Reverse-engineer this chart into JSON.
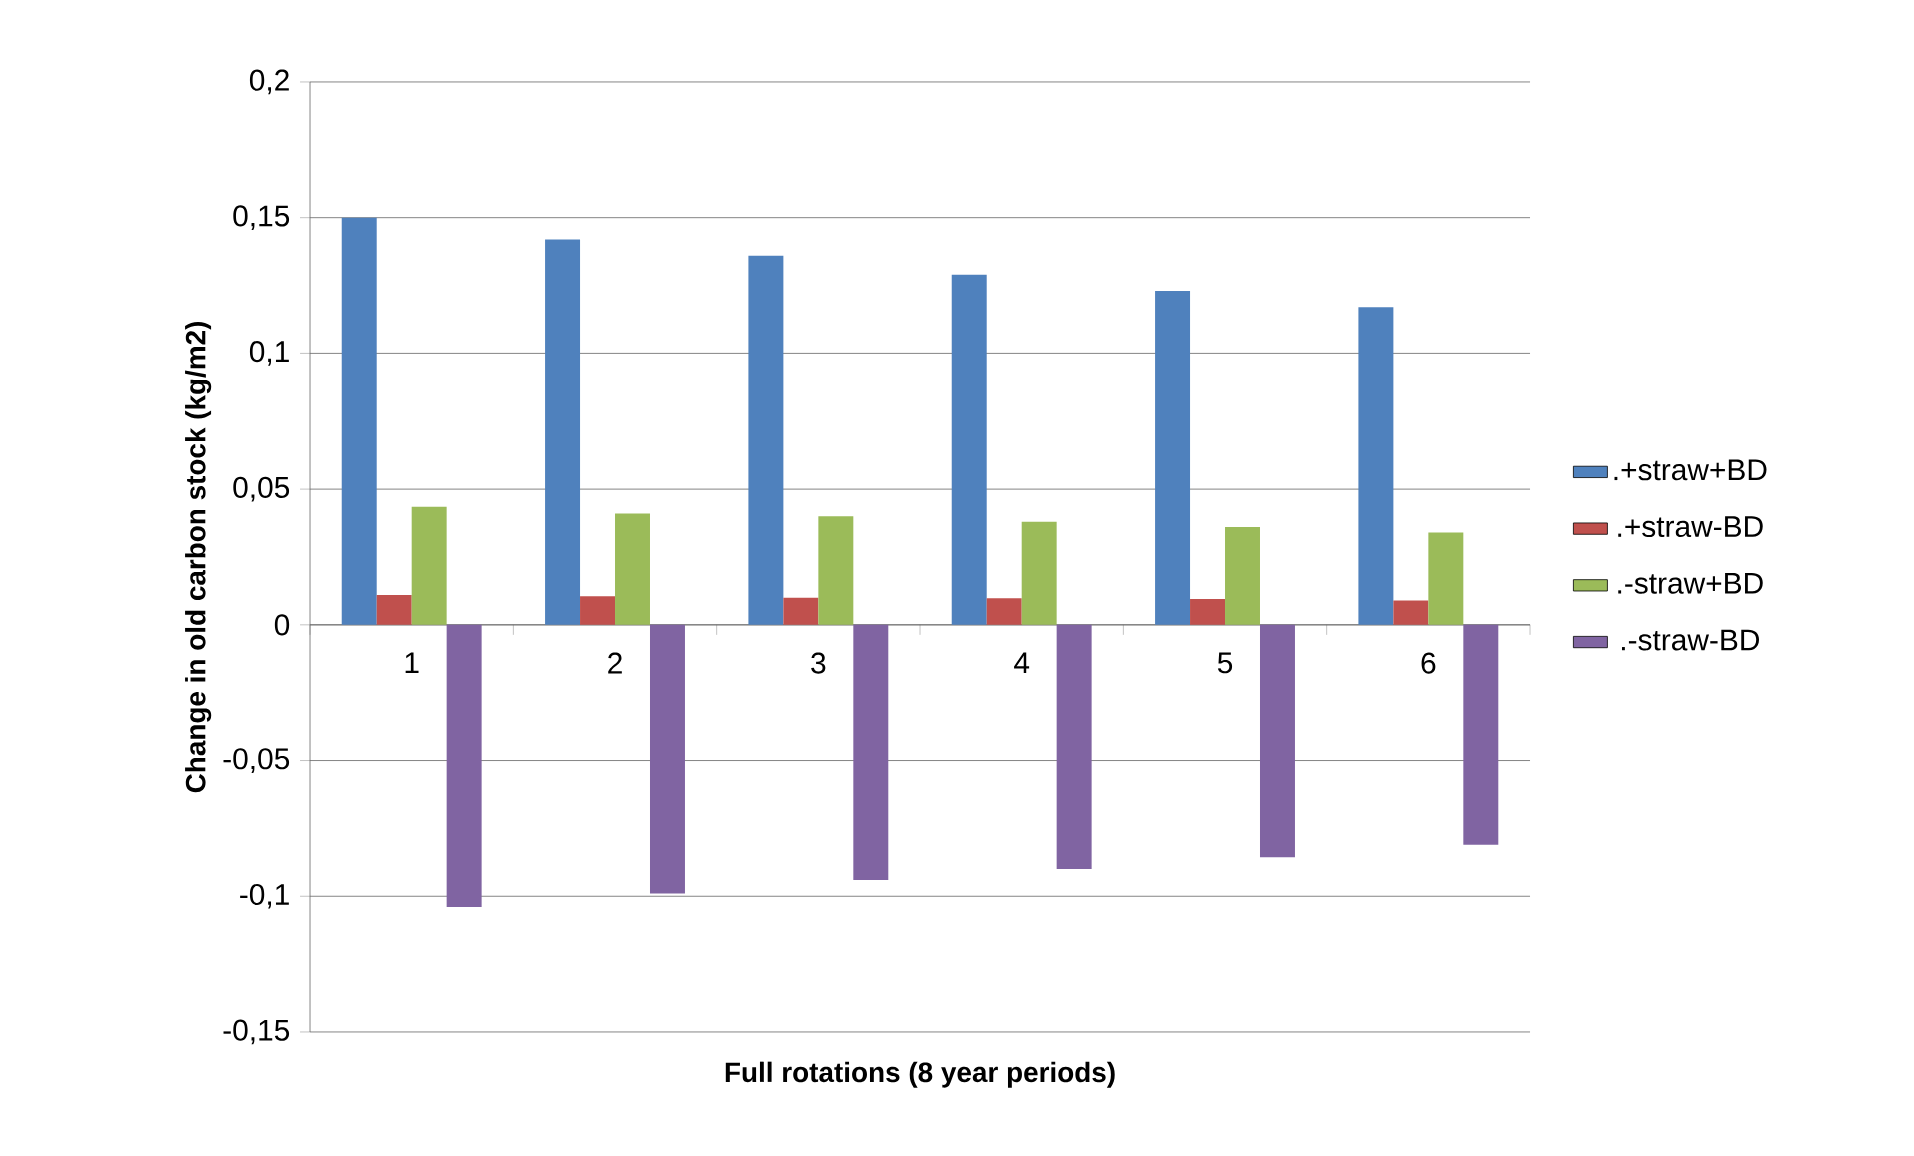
{
  "chart_data": {
    "type": "bar",
    "xlabel": "Full rotations (8 year periods)",
    "ylabel": "Change in old carbon stock (kg/m2)",
    "categories": [
      "1",
      "2",
      "3",
      "4",
      "5",
      "6"
    ],
    "series": [
      {
        "name": ".+straw+BD",
        "color": "#4f81bd",
        "values": [
          0.15,
          0.142,
          0.136,
          0.129,
          0.123,
          0.117
        ]
      },
      {
        "name": ".+straw-BD",
        "color": "#c0504d",
        "values": [
          0.011,
          0.0105,
          0.01,
          0.0098,
          0.0095,
          0.009
        ]
      },
      {
        "name": ".-straw+BD",
        "color": "#9bbb59",
        "values": [
          0.0435,
          0.041,
          0.04,
          0.038,
          0.036,
          0.034
        ]
      },
      {
        "name": ".-straw-BD",
        "color": "#8064a2",
        "values": [
          -0.104,
          -0.099,
          -0.094,
          -0.09,
          -0.0856,
          -0.081
        ]
      }
    ],
    "ylim": [
      -0.15,
      0.2
    ],
    "yticks": [
      {
        "value": -0.15,
        "label": "-0,15"
      },
      {
        "value": -0.1,
        "label": "-0,1"
      },
      {
        "value": -0.05,
        "label": "-0,05"
      },
      {
        "value": 0,
        "label": "0"
      },
      {
        "value": 0.05,
        "label": "0,05"
      },
      {
        "value": 0.1,
        "label": "0,1"
      },
      {
        "value": 0.15,
        "label": "0,15"
      },
      {
        "value": 0.2,
        "label": "0,2"
      }
    ],
    "grid": "y",
    "legend": "right"
  }
}
